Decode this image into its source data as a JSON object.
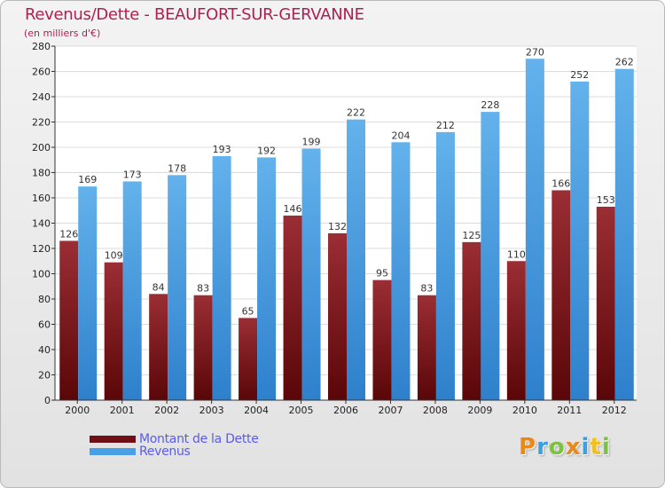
{
  "title": "Revenus/Dette - BEAUFORT-SUR-GERVANNE",
  "subtitle": "(en milliers d'€)",
  "colors": {
    "title": "#b01f4f",
    "dette_dark": "#5a0608",
    "dette_light": "#9a2e34",
    "revenus_dark": "#2e80cc",
    "revenus_light": "#63b2ec",
    "legend_text": "#5a5af0"
  },
  "legend": {
    "items": [
      {
        "label": "Montant de la Dette",
        "color": "#6e1015"
      },
      {
        "label": "Revenus",
        "color": "#4aa0e6"
      }
    ]
  },
  "logo": {
    "letters": [
      {
        "ch": "P",
        "color": "#e8891a"
      },
      {
        "ch": "r",
        "color": "#3aa0e0"
      },
      {
        "ch": "o",
        "color": "#7cc242"
      },
      {
        "ch": "x",
        "color": "#e8891a"
      },
      {
        "ch": "i",
        "color": "#3aa0e0"
      },
      {
        "ch": "t",
        "color": "#f0c020"
      },
      {
        "ch": "i",
        "color": "#7cc242"
      }
    ]
  },
  "chart_data": {
    "type": "bar",
    "categories": [
      "2000",
      "2001",
      "2002",
      "2003",
      "2004",
      "2005",
      "2006",
      "2007",
      "2008",
      "2009",
      "2010",
      "2011",
      "2012"
    ],
    "series": [
      {
        "name": "Montant de la Dette",
        "values": [
          126,
          109,
          84,
          83,
          65,
          146,
          132,
          95,
          83,
          125,
          110,
          166,
          153
        ]
      },
      {
        "name": "Revenus",
        "values": [
          169,
          173,
          178,
          193,
          192,
          199,
          222,
          204,
          212,
          228,
          270,
          252,
          262
        ]
      }
    ],
    "title": "Revenus/Dette - BEAUFORT-SUR-GERVANNE",
    "ylabel": "(en milliers d'€)",
    "ylim": [
      0,
      280
    ],
    "yticks": [
      0,
      20,
      40,
      60,
      80,
      100,
      120,
      140,
      160,
      180,
      200,
      220,
      240,
      260,
      280
    ],
    "grid": true,
    "legend_position": "bottom-left"
  }
}
